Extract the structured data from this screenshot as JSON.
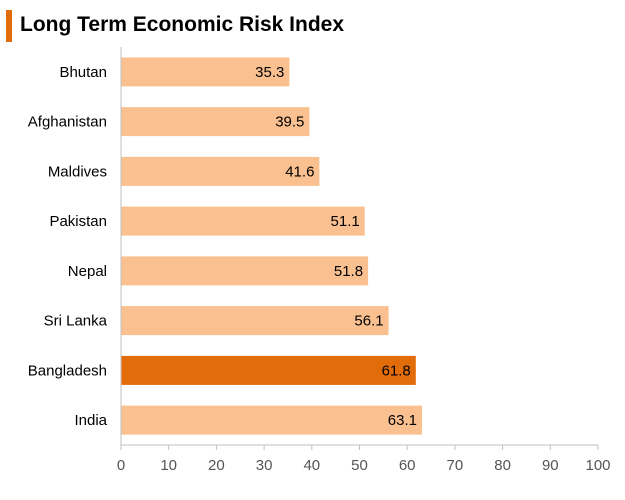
{
  "chart_data": {
    "type": "bar",
    "orientation": "horizontal",
    "title": "Long Term Economic Risk Index",
    "categories": [
      "Bhutan",
      "Afghanistan",
      "Maldives",
      "Pakistan",
      "Nepal",
      "Sri Lanka",
      "Bangladesh",
      "India"
    ],
    "values": [
      35.3,
      39.5,
      41.6,
      51.1,
      51.8,
      56.1,
      61.8,
      63.1
    ],
    "value_labels": [
      "35.3",
      "39.5",
      "41.6",
      "51.1",
      "51.8",
      "56.1",
      "61.8",
      "63.1"
    ],
    "highlight": "Bangladesh",
    "xlim": [
      0,
      100
    ],
    "xticks": [
      "0",
      "10",
      "20",
      "30",
      "40",
      "50",
      "60",
      "70",
      "80",
      "90",
      "100"
    ],
    "xlabel": "",
    "ylabel": "",
    "grid": false,
    "colors": {
      "bar": "#fac090",
      "highlight": "#e36c0a",
      "axis": "#bfbfbf",
      "accent": "#e36c0a"
    }
  }
}
